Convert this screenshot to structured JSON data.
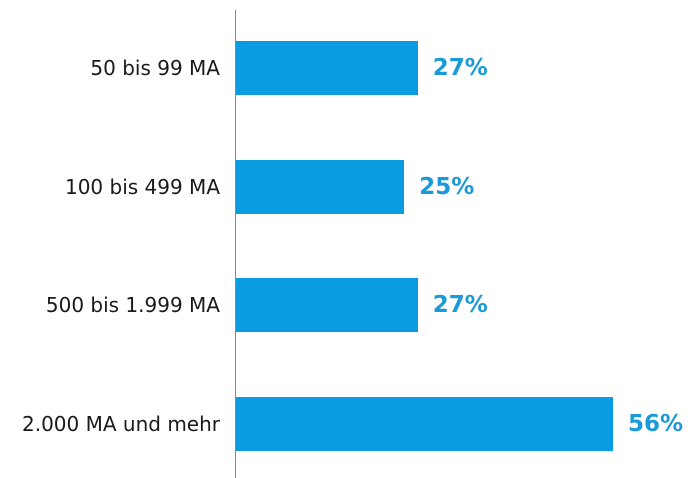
{
  "chart_data": {
    "type": "bar",
    "orientation": "horizontal",
    "categories": [
      "50 bis 99 MA",
      "100 bis 499 MA",
      "500 bis 1.999 MA",
      "2.000 MA und mehr"
    ],
    "values": [
      27,
      25,
      27,
      56
    ],
    "value_labels": [
      "27%",
      "25%",
      "27%",
      "56%"
    ],
    "color": "#0a9be0",
    "label_color": "#1a9ad6"
  }
}
